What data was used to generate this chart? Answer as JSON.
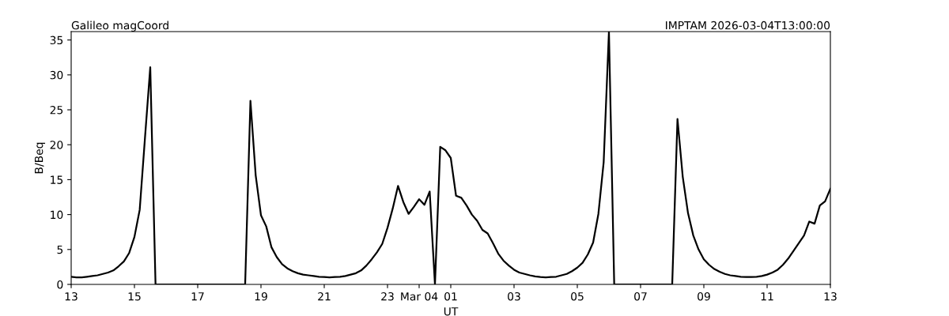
{
  "chart_data": {
    "type": "line",
    "title": "Galileo magCoord",
    "subtitle": "IMPTAM 2026-03-04T13:00:00",
    "xlabel": "UT",
    "ylabel": "B/Beq",
    "x": [
      "2026-03-03T13:00",
      "2026-03-03T13:10",
      "2026-03-03T13:20",
      "2026-03-03T13:30",
      "2026-03-03T13:40",
      "2026-03-03T13:50",
      "2026-03-03T14:00",
      "2026-03-03T14:10",
      "2026-03-03T14:20",
      "2026-03-03T14:30",
      "2026-03-03T14:40",
      "2026-03-03T14:50",
      "2026-03-03T15:00",
      "2026-03-03T15:10",
      "2026-03-03T15:20",
      "2026-03-03T15:30",
      "2026-03-03T15:40",
      "2026-03-03T18:30",
      "2026-03-03T18:40",
      "2026-03-03T18:50",
      "2026-03-03T19:00",
      "2026-03-03T19:10",
      "2026-03-03T19:20",
      "2026-03-03T19:30",
      "2026-03-03T19:40",
      "2026-03-03T19:50",
      "2026-03-03T20:00",
      "2026-03-03T20:10",
      "2026-03-03T20:20",
      "2026-03-03T20:30",
      "2026-03-03T20:40",
      "2026-03-03T20:50",
      "2026-03-03T21:00",
      "2026-03-03T21:10",
      "2026-03-03T21:20",
      "2026-03-03T21:30",
      "2026-03-03T21:40",
      "2026-03-03T21:50",
      "2026-03-03T22:00",
      "2026-03-03T22:10",
      "2026-03-03T22:20",
      "2026-03-03T22:30",
      "2026-03-03T22:40",
      "2026-03-03T22:50",
      "2026-03-03T23:00",
      "2026-03-03T23:10",
      "2026-03-03T23:20",
      "2026-03-03T23:30",
      "2026-03-03T23:40",
      "2026-03-03T23:50",
      "2026-03-04T00:00",
      "2026-03-04T00:10",
      "2026-03-04T00:20",
      "2026-03-04T00:30",
      "2026-03-04T00:40",
      "2026-03-04T00:50",
      "2026-03-04T01:00",
      "2026-03-04T01:10",
      "2026-03-04T01:20",
      "2026-03-04T01:30",
      "2026-03-04T01:40",
      "2026-03-04T01:50",
      "2026-03-04T02:00",
      "2026-03-04T02:10",
      "2026-03-04T02:20",
      "2026-03-04T02:30",
      "2026-03-04T02:40",
      "2026-03-04T02:50",
      "2026-03-04T03:00",
      "2026-03-04T03:10",
      "2026-03-04T03:20",
      "2026-03-04T03:30",
      "2026-03-04T03:40",
      "2026-03-04T03:50",
      "2026-03-04T04:00",
      "2026-03-04T04:10",
      "2026-03-04T04:20",
      "2026-03-04T04:30",
      "2026-03-04T04:40",
      "2026-03-04T04:50",
      "2026-03-04T05:00",
      "2026-03-04T05:10",
      "2026-03-04T05:20",
      "2026-03-04T05:30",
      "2026-03-04T05:40",
      "2026-03-04T05:50",
      "2026-03-04T06:00",
      "2026-03-04T06:10",
      "2026-03-04T08:00",
      "2026-03-04T08:10",
      "2026-03-04T08:20",
      "2026-03-04T08:30",
      "2026-03-04T08:40",
      "2026-03-04T08:50",
      "2026-03-04T09:00",
      "2026-03-04T09:10",
      "2026-03-04T09:20",
      "2026-03-04T09:30",
      "2026-03-04T09:40",
      "2026-03-04T09:50",
      "2026-03-04T10:00",
      "2026-03-04T10:10",
      "2026-03-04T10:20",
      "2026-03-04T10:30",
      "2026-03-04T10:40",
      "2026-03-04T10:50",
      "2026-03-04T11:00",
      "2026-03-04T11:10",
      "2026-03-04T11:20",
      "2026-03-04T11:30",
      "2026-03-04T11:40",
      "2026-03-04T11:50",
      "2026-03-04T12:00",
      "2026-03-04T12:10",
      "2026-03-04T12:20",
      "2026-03-04T12:30",
      "2026-03-04T12:40",
      "2026-03-04T12:50",
      "2026-03-04T13:00"
    ],
    "series": [
      {
        "color": "#000000",
        "values": [
          1.1,
          1.0,
          1.0,
          1.1,
          1.2,
          1.3,
          1.5,
          1.7,
          2.0,
          2.6,
          3.3,
          4.5,
          6.8,
          10.7,
          21,
          31.1,
          0,
          0,
          26.3,
          15.6,
          9.9,
          8.3,
          5.3,
          3.9,
          2.9,
          2.3,
          1.9,
          1.6,
          1.4,
          1.3,
          1.2,
          1.1,
          1.05,
          1.0,
          1.05,
          1.1,
          1.2,
          1.4,
          1.6,
          2.0,
          2.7,
          3.6,
          4.6,
          5.8,
          8.1,
          10.9,
          14.1,
          11.8,
          10.1,
          11.1,
          12.2,
          11.4,
          13.3,
          0,
          19.7,
          19.2,
          18.1,
          12.7,
          12.4,
          11.3,
          10.0,
          9.1,
          7.8,
          7.3,
          5.9,
          4.4,
          3.4,
          2.7,
          2.1,
          1.7,
          1.5,
          1.3,
          1.15,
          1.05,
          1.0,
          1.05,
          1.1,
          1.3,
          1.5,
          1.9,
          2.4,
          3.1,
          4.3,
          6.0,
          10.1,
          17.5,
          36.2,
          0,
          0,
          23.7,
          15.4,
          10.2,
          7.0,
          5.0,
          3.6,
          2.8,
          2.2,
          1.8,
          1.5,
          1.3,
          1.2,
          1.1,
          1.05,
          1.05,
          1.1,
          1.2,
          1.4,
          1.7,
          2.1,
          2.8,
          3.7,
          4.8,
          5.9,
          7.0,
          9.0,
          8.7,
          11.3,
          11.9,
          13.7
        ]
      }
    ],
    "xlim": [
      "2026-03-03T13:00",
      "2026-03-04T13:00"
    ],
    "xticks": [
      {
        "value": "2026-03-03T13:00",
        "label": "13"
      },
      {
        "value": "2026-03-03T15:00",
        "label": "15"
      },
      {
        "value": "2026-03-03T17:00",
        "label": "17"
      },
      {
        "value": "2026-03-03T19:00",
        "label": "19"
      },
      {
        "value": "2026-03-03T21:00",
        "label": "21"
      },
      {
        "value": "2026-03-03T23:00",
        "label": "23"
      },
      {
        "value": "2026-03-04T00:00",
        "label": "Mar 04"
      },
      {
        "value": "2026-03-04T01:00",
        "label": "01"
      },
      {
        "value": "2026-03-04T03:00",
        "label": "03"
      },
      {
        "value": "2026-03-04T05:00",
        "label": "05"
      },
      {
        "value": "2026-03-04T07:00",
        "label": "07"
      },
      {
        "value": "2026-03-04T09:00",
        "label": "09"
      },
      {
        "value": "2026-03-04T11:00",
        "label": "11"
      },
      {
        "value": "2026-03-04T13:00",
        "label": "13"
      }
    ],
    "ylim": [
      0,
      36.2
    ],
    "yticks": [
      0,
      5,
      10,
      15,
      20,
      25,
      30,
      35
    ],
    "grid": false,
    "marker": "none",
    "line_style": "solid"
  }
}
